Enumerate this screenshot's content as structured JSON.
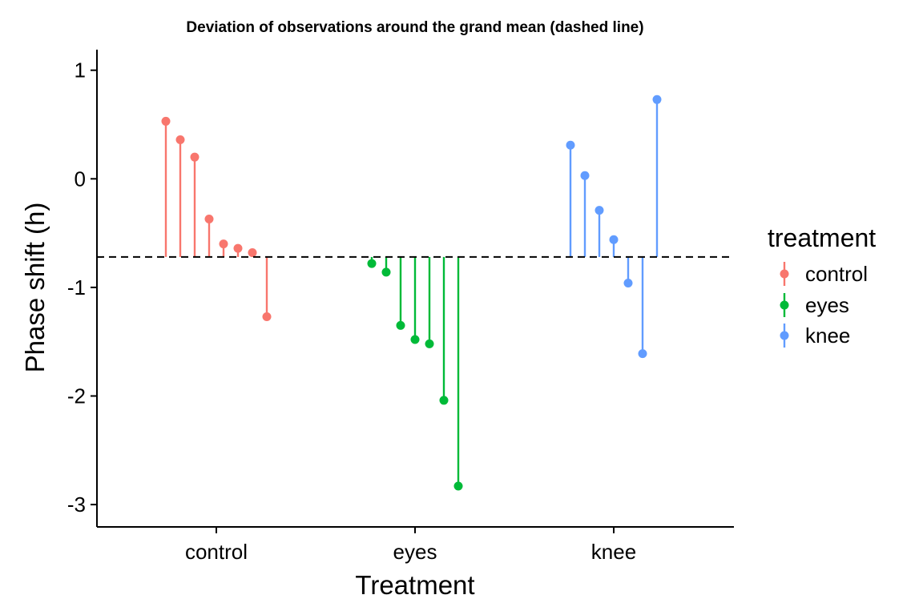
{
  "chart_data": {
    "type": "scatter",
    "title": "Deviation of observations around the grand mean (dashed line)",
    "xlabel": "Treatment",
    "ylabel": "Phase shift (h)",
    "categories": [
      "control",
      "eyes",
      "knee"
    ],
    "ylim": [
      -3.2,
      1.2
    ],
    "yticks": [
      1,
      0,
      -1,
      -2,
      -3
    ],
    "yticklabels": [
      "1",
      "0",
      "-1",
      "-2",
      "-3"
    ],
    "grand_mean": -0.72,
    "reference_line": "dashed",
    "grid": false,
    "legend": {
      "title": "treatment",
      "position": "right",
      "entries": [
        "control",
        "eyes",
        "knee"
      ]
    },
    "series": [
      {
        "name": "control",
        "color": "#F8766D",
        "values": [
          0.53,
          0.36,
          0.2,
          -0.37,
          -0.6,
          -0.64,
          -0.68,
          -1.27
        ]
      },
      {
        "name": "eyes",
        "color": "#00BA38",
        "values": [
          -0.78,
          -0.86,
          -1.35,
          -1.48,
          -1.52,
          -2.04,
          -2.83
        ]
      },
      {
        "name": "knee",
        "color": "#619CFF",
        "values": [
          0.31,
          0.03,
          -0.29,
          -0.56,
          -0.96,
          -1.61,
          0.73
        ]
      }
    ]
  }
}
